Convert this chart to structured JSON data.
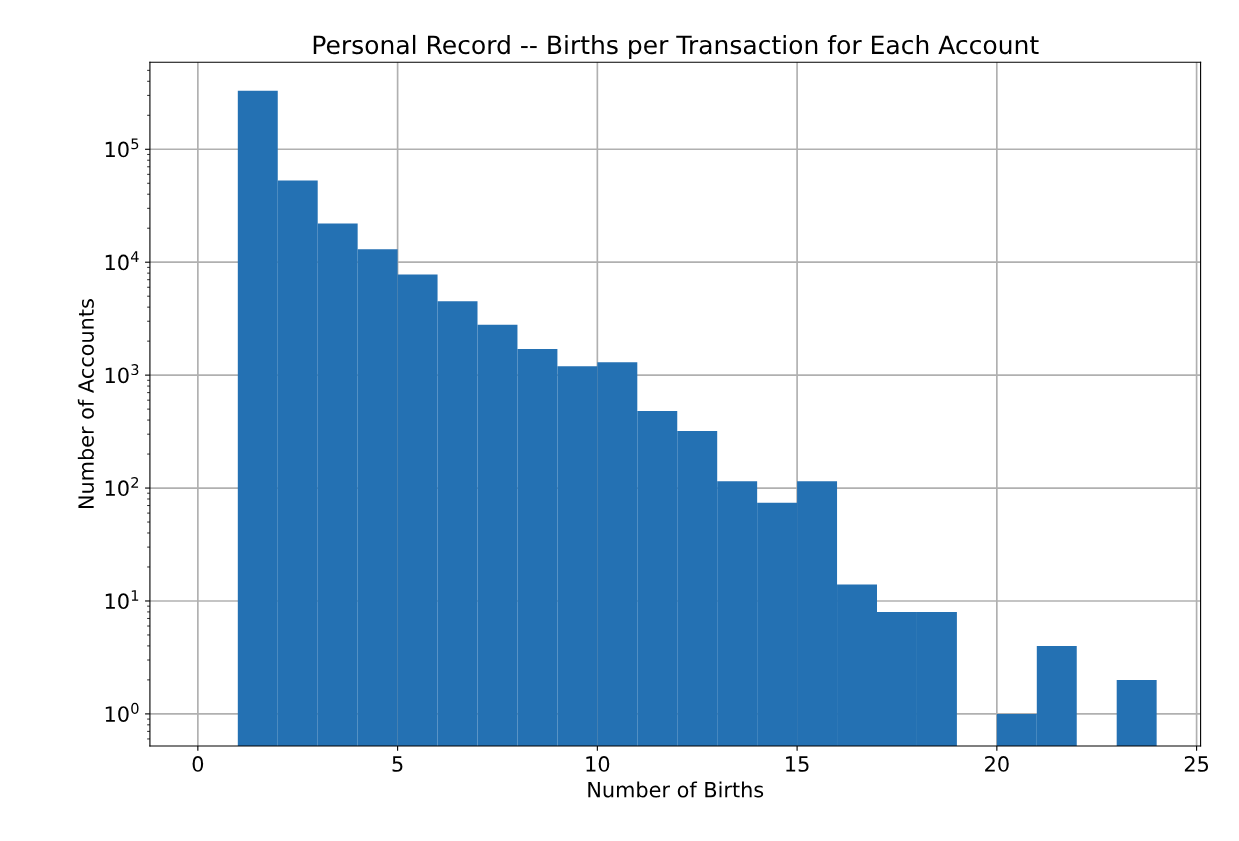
{
  "chart_data": {
    "type": "histogram",
    "title": "Personal Record -- Births per Transaction for Each Account",
    "xlabel": "Number of Births",
    "ylabel": "Number of Accounts",
    "bins": [
      1,
      2,
      3,
      4,
      5,
      6,
      7,
      8,
      9,
      10,
      11,
      12,
      13,
      14,
      15,
      16,
      17,
      18,
      19,
      20,
      21,
      22,
      23,
      24
    ],
    "values": [
      330000,
      53000,
      22000,
      13000,
      7800,
      4500,
      2800,
      1700,
      1200,
      1300,
      480,
      320,
      115,
      74,
      115,
      14,
      8,
      8,
      null,
      1,
      4,
      null,
      2
    ],
    "color": "#2471b3",
    "log": "y",
    "grid": true,
    "xlim": [
      -1.2,
      25.1
    ],
    "xticks": [
      0,
      5,
      10,
      15,
      20,
      25
    ],
    "ylim": [
      0.52,
      590000
    ],
    "yticks": [
      {
        "value": 1,
        "label": "10$^{0}$"
      },
      {
        "value": 10,
        "label": "10$^{1}$"
      },
      {
        "value": 100,
        "label": "10$^{2}$"
      },
      {
        "value": 1000,
        "label": "10$^{3}$"
      },
      {
        "value": 10000,
        "label": "10$^{4}$"
      },
      {
        "value": 100000,
        "label": "10$^{5}$"
      }
    ]
  }
}
